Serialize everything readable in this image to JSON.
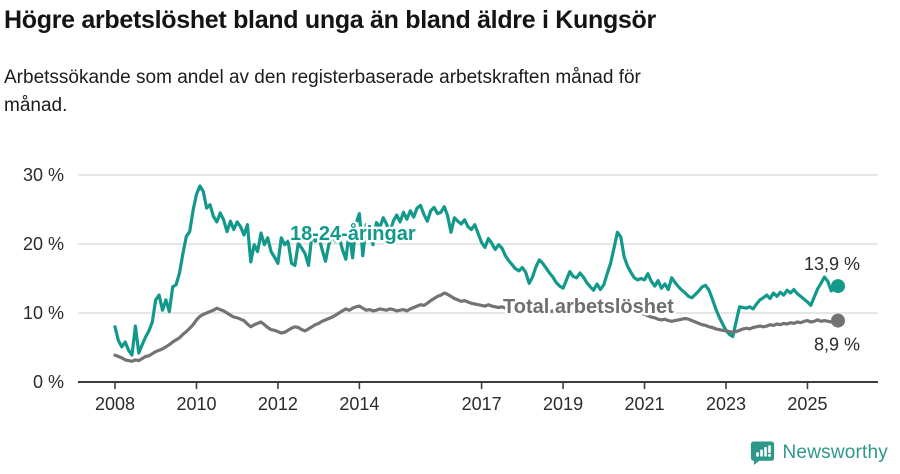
{
  "header": {
    "title": "Högre arbetslöshet bland unga än bland äldre i Kungsör",
    "subtitle_line1": "Arbetssökande som andel av den registerbaserade arbetskraften månad för",
    "subtitle_line2": "månad."
  },
  "chart_data": {
    "type": "line",
    "title": "Högre arbetslöshet bland unga än bland äldre i Kungsör",
    "subtitle": "Arbetssökande som andel av den registerbaserade arbetskraften månad för månad.",
    "unit": "%",
    "x_start": "2008-01",
    "x_end": "2025-10",
    "x_frequency": "monthly",
    "ylim": [
      0,
      31
    ],
    "grid": true,
    "yticks": [
      {
        "value": 0,
        "label": "0 %"
      },
      {
        "value": 10,
        "label": "10 %"
      },
      {
        "value": 20,
        "label": "20 %"
      },
      {
        "value": 30,
        "label": "30 %"
      }
    ],
    "xticks": [
      {
        "year": 2008,
        "label": "2008"
      },
      {
        "year": 2010,
        "label": "2010"
      },
      {
        "year": 2012,
        "label": "2012"
      },
      {
        "year": 2014,
        "label": "2014"
      },
      {
        "year": 2017,
        "label": "2017"
      },
      {
        "year": 2019,
        "label": "2019"
      },
      {
        "year": 2021,
        "label": "2021"
      },
      {
        "year": 2023,
        "label": "2023"
      },
      {
        "year": 2025,
        "label": "2025"
      }
    ],
    "series": [
      {
        "name": "18-24-åringar",
        "color": "#12998b",
        "end_value": 13.9,
        "end_label": "13,9 %",
        "values": [
          8.0,
          6.0,
          5.1,
          5.8,
          4.6,
          3.9,
          8.1,
          4.2,
          5.4,
          6.5,
          7.4,
          8.7,
          11.9,
          12.6,
          10.4,
          11.9,
          10.2,
          13.8,
          14.1,
          15.8,
          18.6,
          21.1,
          21.8,
          24.9,
          27.2,
          28.4,
          27.6,
          25.2,
          25.7,
          24.0,
          23.2,
          24.5,
          23.5,
          21.8,
          23.3,
          22.1,
          23.2,
          22.5,
          21.3,
          22.8,
          17.4,
          19.9,
          18.9,
          21.6,
          19.9,
          20.9,
          18.9,
          18.1,
          17.2,
          20.9,
          19.9,
          20.4,
          17.2,
          16.9,
          20.1,
          19.4,
          18.6,
          16.9,
          21.3,
          20.4,
          21.1,
          19.2,
          17.5,
          19.9,
          21.3,
          20.4,
          21.1,
          19.2,
          17.8,
          21.7,
          18.0,
          23.0,
          24.4,
          18.3,
          22.8,
          21.5,
          19.9,
          23.1,
          22.4,
          23.8,
          22.9,
          21.7,
          23.3,
          24.2,
          23.2,
          24.6,
          23.6,
          24.8,
          23.9,
          25.2,
          25.6,
          24.3,
          23.3,
          24.8,
          25.3,
          24.4,
          24.6,
          25.4,
          24.1,
          21.7,
          23.8,
          23.3,
          22.9,
          23.5,
          22.5,
          22.1,
          22.8,
          21.5,
          20.2,
          19.5,
          20.8,
          20.1,
          19.2,
          19.9,
          19.4,
          18.3,
          17.6,
          17.0,
          16.4,
          16.1,
          16.6,
          15.9,
          14.3,
          15.2,
          16.7,
          17.7,
          17.2,
          16.5,
          15.8,
          15.2,
          14.4,
          13.9,
          13.6,
          14.8,
          16.0,
          15.3,
          15.1,
          15.8,
          15.2,
          14.4,
          13.8,
          13.3,
          14.2,
          13.4,
          14.1,
          15.7,
          17.2,
          19.4,
          21.7,
          21.0,
          18.1,
          16.8,
          15.9,
          15.1,
          14.8,
          15.0,
          14.8,
          15.7,
          14.6,
          13.9,
          14.7,
          13.6,
          14.2,
          13.4,
          15.1,
          14.4,
          13.8,
          13.3,
          12.9,
          12.4,
          12.2,
          12.7,
          13.2,
          13.8,
          14.0,
          13.3,
          12.0,
          10.6,
          9.4,
          8.4,
          7.5,
          6.9,
          6.6,
          8.8,
          10.9,
          10.8,
          10.7,
          10.9,
          10.6,
          11.3,
          11.9,
          12.2,
          12.6,
          12.1,
          12.9,
          12.4,
          13.0,
          12.6,
          13.3,
          12.9,
          13.4,
          12.8,
          12.4,
          12.0,
          11.6,
          11.1,
          12.3,
          13.5,
          14.3,
          15.2,
          14.6,
          13.2,
          13.6,
          13.9
        ]
      },
      {
        "name": "Total arbetslöshet",
        "color": "#737373",
        "end_value": 8.9,
        "end_label": "8,9 %",
        "values": [
          3.9,
          3.7,
          3.5,
          3.2,
          3.1,
          3.0,
          3.2,
          3.1,
          3.4,
          3.7,
          3.8,
          4.1,
          4.4,
          4.6,
          4.8,
          5.1,
          5.4,
          5.8,
          6.1,
          6.4,
          6.9,
          7.3,
          7.8,
          8.3,
          9.0,
          9.5,
          9.8,
          10.0,
          10.2,
          10.4,
          10.7,
          10.5,
          10.3,
          10.0,
          9.7,
          9.4,
          9.3,
          9.1,
          8.9,
          8.4,
          8.0,
          8.3,
          8.5,
          8.7,
          8.3,
          7.9,
          7.6,
          7.5,
          7.3,
          7.1,
          7.2,
          7.5,
          7.8,
          8.0,
          7.9,
          7.6,
          7.4,
          7.7,
          8.0,
          8.3,
          8.5,
          8.8,
          9.0,
          9.2,
          9.4,
          9.7,
          10.0,
          10.3,
          10.6,
          10.4,
          10.7,
          10.9,
          11.0,
          10.7,
          10.4,
          10.5,
          10.3,
          10.4,
          10.6,
          10.5,
          10.4,
          10.6,
          10.5,
          10.3,
          10.4,
          10.5,
          10.3,
          10.6,
          10.8,
          11.0,
          11.2,
          11.1,
          11.4,
          11.8,
          12.1,
          12.4,
          12.6,
          12.9,
          12.7,
          12.4,
          12.1,
          11.9,
          11.7,
          11.8,
          11.6,
          11.4,
          11.3,
          11.2,
          11.1,
          11.0,
          11.2,
          11.0,
          10.9,
          10.8,
          10.9,
          10.7,
          10.6,
          10.7,
          10.5,
          10.6,
          10.5,
          10.4,
          10.5,
          10.3,
          10.4,
          10.5,
          10.4,
          10.3,
          10.2,
          10.3,
          10.2,
          10.3,
          10.2,
          10.3,
          10.4,
          10.3,
          10.2,
          10.4,
          10.3,
          10.2,
          10.1,
          10.2,
          10.3,
          10.4,
          10.5,
          10.7,
          11.0,
          11.4,
          11.6,
          11.5,
          11.3,
          11.1,
          10.9,
          10.6,
          10.3,
          10.0,
          9.8,
          9.6,
          9.4,
          9.3,
          9.1,
          9.0,
          9.1,
          8.9,
          8.8,
          8.9,
          9.0,
          9.1,
          9.2,
          9.1,
          8.9,
          8.7,
          8.5,
          8.3,
          8.2,
          8.0,
          7.9,
          7.7,
          7.6,
          7.5,
          7.4,
          7.3,
          7.2,
          7.3,
          7.5,
          7.7,
          7.8,
          7.7,
          7.9,
          8.0,
          8.1,
          8.0,
          8.1,
          8.3,
          8.2,
          8.4,
          8.3,
          8.5,
          8.4,
          8.6,
          8.5,
          8.7,
          8.6,
          8.8,
          8.9,
          8.7,
          8.8,
          9.0,
          8.8,
          8.9,
          8.8,
          8.7,
          8.8,
          8.9
        ]
      }
    ],
    "colors": {
      "youth_line": "#12998b",
      "total_line": "#737373",
      "gridline": "#d8d8d8",
      "axis": "#3c3c3c",
      "tick_label": "#2b2b2b",
      "brand_teal": "#2e978a"
    }
  },
  "footer": {
    "brand": "Newsworthy"
  }
}
